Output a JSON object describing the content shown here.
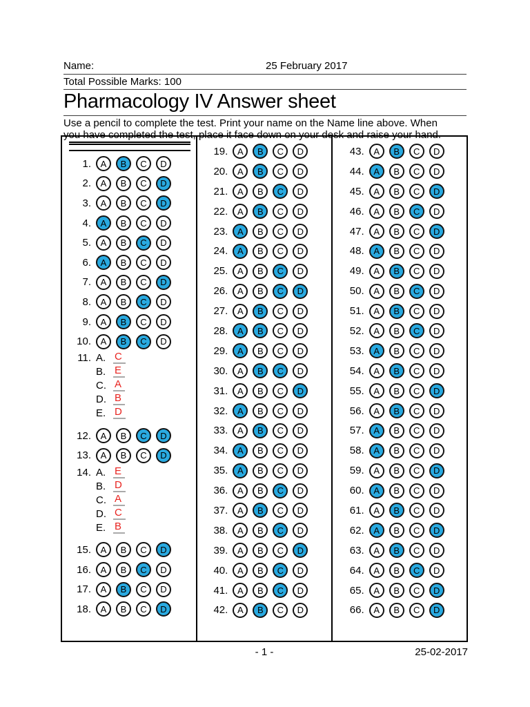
{
  "header": {
    "name_label": "Name:",
    "date": "25 February 2017",
    "marks": "Total Possible Marks: 100",
    "title": "Pharmacology IV Answer sheet",
    "instructions_line1": "Use a pencil to complete the test. Print your name on the Name line above. When",
    "instructions_line2": "you have completed the test, place it face down on your desk and raise your hand."
  },
  "footer": {
    "page": "- 1 -",
    "date": "25-02-2017"
  },
  "colors": {
    "bubble_fill": "#29AAE1",
    "red_text": "#E8231F",
    "underline_gray": "#A9A9A9"
  },
  "options": [
    "A",
    "B",
    "C",
    "D"
  ],
  "columns": [
    {
      "questions": [
        {
          "n": "1.",
          "type": "bubble",
          "filled": [
            "B"
          ]
        },
        {
          "n": "2.",
          "type": "bubble",
          "filled": [
            "D"
          ]
        },
        {
          "n": "3.",
          "type": "bubble",
          "filled": [
            "D"
          ]
        },
        {
          "n": "4.",
          "type": "bubble",
          "filled": [
            "A"
          ]
        },
        {
          "n": "5.",
          "type": "bubble",
          "filled": [
            "C"
          ]
        },
        {
          "n": "6.",
          "type": "bubble",
          "filled": [
            "A"
          ]
        },
        {
          "n": "7.",
          "type": "bubble",
          "filled": [
            "D"
          ]
        },
        {
          "n": "8.",
          "type": "bubble",
          "filled": [
            "C"
          ]
        },
        {
          "n": "9.",
          "type": "bubble",
          "filled": [
            "B"
          ]
        },
        {
          "n": "10.",
          "type": "bubble",
          "filled": [
            "B",
            "C"
          ]
        },
        {
          "n": "11.",
          "type": "text",
          "subs": [
            {
              "label": "A.",
              "answer": "C"
            },
            {
              "label": "B.",
              "answer": "E"
            },
            {
              "label": "C.",
              "answer": "A"
            },
            {
              "label": "D.",
              "answer": "B"
            },
            {
              "label": "E.",
              "answer": "D"
            }
          ]
        },
        {
          "n": "12.",
          "type": "bubble",
          "filled": [
            "C",
            "D"
          ],
          "gap": true
        },
        {
          "n": "13.",
          "type": "bubble",
          "filled": [
            "D"
          ]
        },
        {
          "n": "14.",
          "type": "text",
          "subs": [
            {
              "label": "A.",
              "answer": "E"
            },
            {
              "label": "B.",
              "answer": "D"
            },
            {
              "label": "C.",
              "answer": "A"
            },
            {
              "label": "D.",
              "answer": "C"
            },
            {
              "label": "E.",
              "answer": "B"
            }
          ]
        },
        {
          "n": "15.",
          "type": "bubble",
          "filled": [
            "D"
          ],
          "gap": true
        },
        {
          "n": "16.",
          "type": "bubble",
          "filled": [
            "C"
          ]
        },
        {
          "n": "17.",
          "type": "bubble",
          "filled": [
            "B"
          ]
        },
        {
          "n": "18.",
          "type": "bubble",
          "filled": [
            "D"
          ]
        }
      ]
    },
    {
      "questions": [
        {
          "n": "19.",
          "type": "bubble",
          "filled": [
            "B"
          ]
        },
        {
          "n": "20.",
          "type": "bubble",
          "filled": [
            "B"
          ]
        },
        {
          "n": "21.",
          "type": "bubble",
          "filled": [
            "C"
          ]
        },
        {
          "n": "22.",
          "type": "bubble",
          "filled": [
            "B"
          ]
        },
        {
          "n": "23.",
          "type": "bubble",
          "filled": [
            "A"
          ]
        },
        {
          "n": "24.",
          "type": "bubble",
          "filled": [
            "A"
          ]
        },
        {
          "n": "25.",
          "type": "bubble",
          "filled": [
            "C"
          ]
        },
        {
          "n": "26.",
          "type": "bubble",
          "filled": [
            "C",
            "D"
          ]
        },
        {
          "n": "27.",
          "type": "bubble",
          "filled": [
            "B"
          ]
        },
        {
          "n": "28.",
          "type": "bubble",
          "filled": [
            "A",
            "B"
          ]
        },
        {
          "n": "29.",
          "type": "bubble",
          "filled": [
            "A"
          ]
        },
        {
          "n": "30.",
          "type": "bubble",
          "filled": [
            "B",
            "C"
          ]
        },
        {
          "n": "31.",
          "type": "bubble",
          "filled": [
            "D"
          ]
        },
        {
          "n": "32.",
          "type": "bubble",
          "filled": [
            "A"
          ]
        },
        {
          "n": "33.",
          "type": "bubble",
          "filled": [
            "B"
          ]
        },
        {
          "n": "34.",
          "type": "bubble",
          "filled": [
            "A"
          ]
        },
        {
          "n": "35.",
          "type": "bubble",
          "filled": [
            "A"
          ]
        },
        {
          "n": "36.",
          "type": "bubble",
          "filled": [
            "C"
          ]
        },
        {
          "n": "37.",
          "type": "bubble",
          "filled": [
            "B"
          ]
        },
        {
          "n": "38.",
          "type": "bubble",
          "filled": [
            "C"
          ]
        },
        {
          "n": "39.",
          "type": "bubble",
          "filled": [
            "D"
          ]
        },
        {
          "n": "40.",
          "type": "bubble",
          "filled": [
            "C"
          ]
        },
        {
          "n": "41.",
          "type": "bubble",
          "filled": [
            "C"
          ]
        },
        {
          "n": "42.",
          "type": "bubble",
          "filled": [
            "B"
          ]
        }
      ]
    },
    {
      "questions": [
        {
          "n": "43.",
          "type": "bubble",
          "filled": [
            "B"
          ]
        },
        {
          "n": "44.",
          "type": "bubble",
          "filled": [
            "A"
          ]
        },
        {
          "n": "45.",
          "type": "bubble",
          "filled": [
            "D"
          ]
        },
        {
          "n": "46.",
          "type": "bubble",
          "filled": [
            "C"
          ]
        },
        {
          "n": "47.",
          "type": "bubble",
          "filled": [
            "D"
          ]
        },
        {
          "n": "48.",
          "type": "bubble",
          "filled": [
            "A"
          ]
        },
        {
          "n": "49.",
          "type": "bubble",
          "filled": [
            "B"
          ]
        },
        {
          "n": "50.",
          "type": "bubble",
          "filled": [
            "C"
          ]
        },
        {
          "n": "51.",
          "type": "bubble",
          "filled": [
            "B"
          ]
        },
        {
          "n": "52.",
          "type": "bubble",
          "filled": [
            "C"
          ]
        },
        {
          "n": "53.",
          "type": "bubble",
          "filled": [
            "A"
          ]
        },
        {
          "n": "54.",
          "type": "bubble",
          "filled": [
            "B"
          ]
        },
        {
          "n": "55.",
          "type": "bubble",
          "filled": [
            "D"
          ]
        },
        {
          "n": "56.",
          "type": "bubble",
          "filled": [
            "B"
          ]
        },
        {
          "n": "57.",
          "type": "bubble",
          "filled": [
            "A"
          ]
        },
        {
          "n": "58.",
          "type": "bubble",
          "filled": [
            "A"
          ]
        },
        {
          "n": "59.",
          "type": "bubble",
          "filled": [
            "D"
          ]
        },
        {
          "n": "60.",
          "type": "bubble",
          "filled": [
            "A"
          ]
        },
        {
          "n": "61.",
          "type": "bubble",
          "filled": [
            "B"
          ]
        },
        {
          "n": "62.",
          "type": "bubble",
          "filled": [
            "A",
            "D"
          ]
        },
        {
          "n": "63.",
          "type": "bubble",
          "filled": [
            "B"
          ]
        },
        {
          "n": "64.",
          "type": "bubble",
          "filled": [
            "C"
          ]
        },
        {
          "n": "65.",
          "type": "bubble",
          "filled": [
            "D"
          ]
        },
        {
          "n": "66.",
          "type": "bubble",
          "filled": [
            "D"
          ]
        }
      ]
    }
  ]
}
